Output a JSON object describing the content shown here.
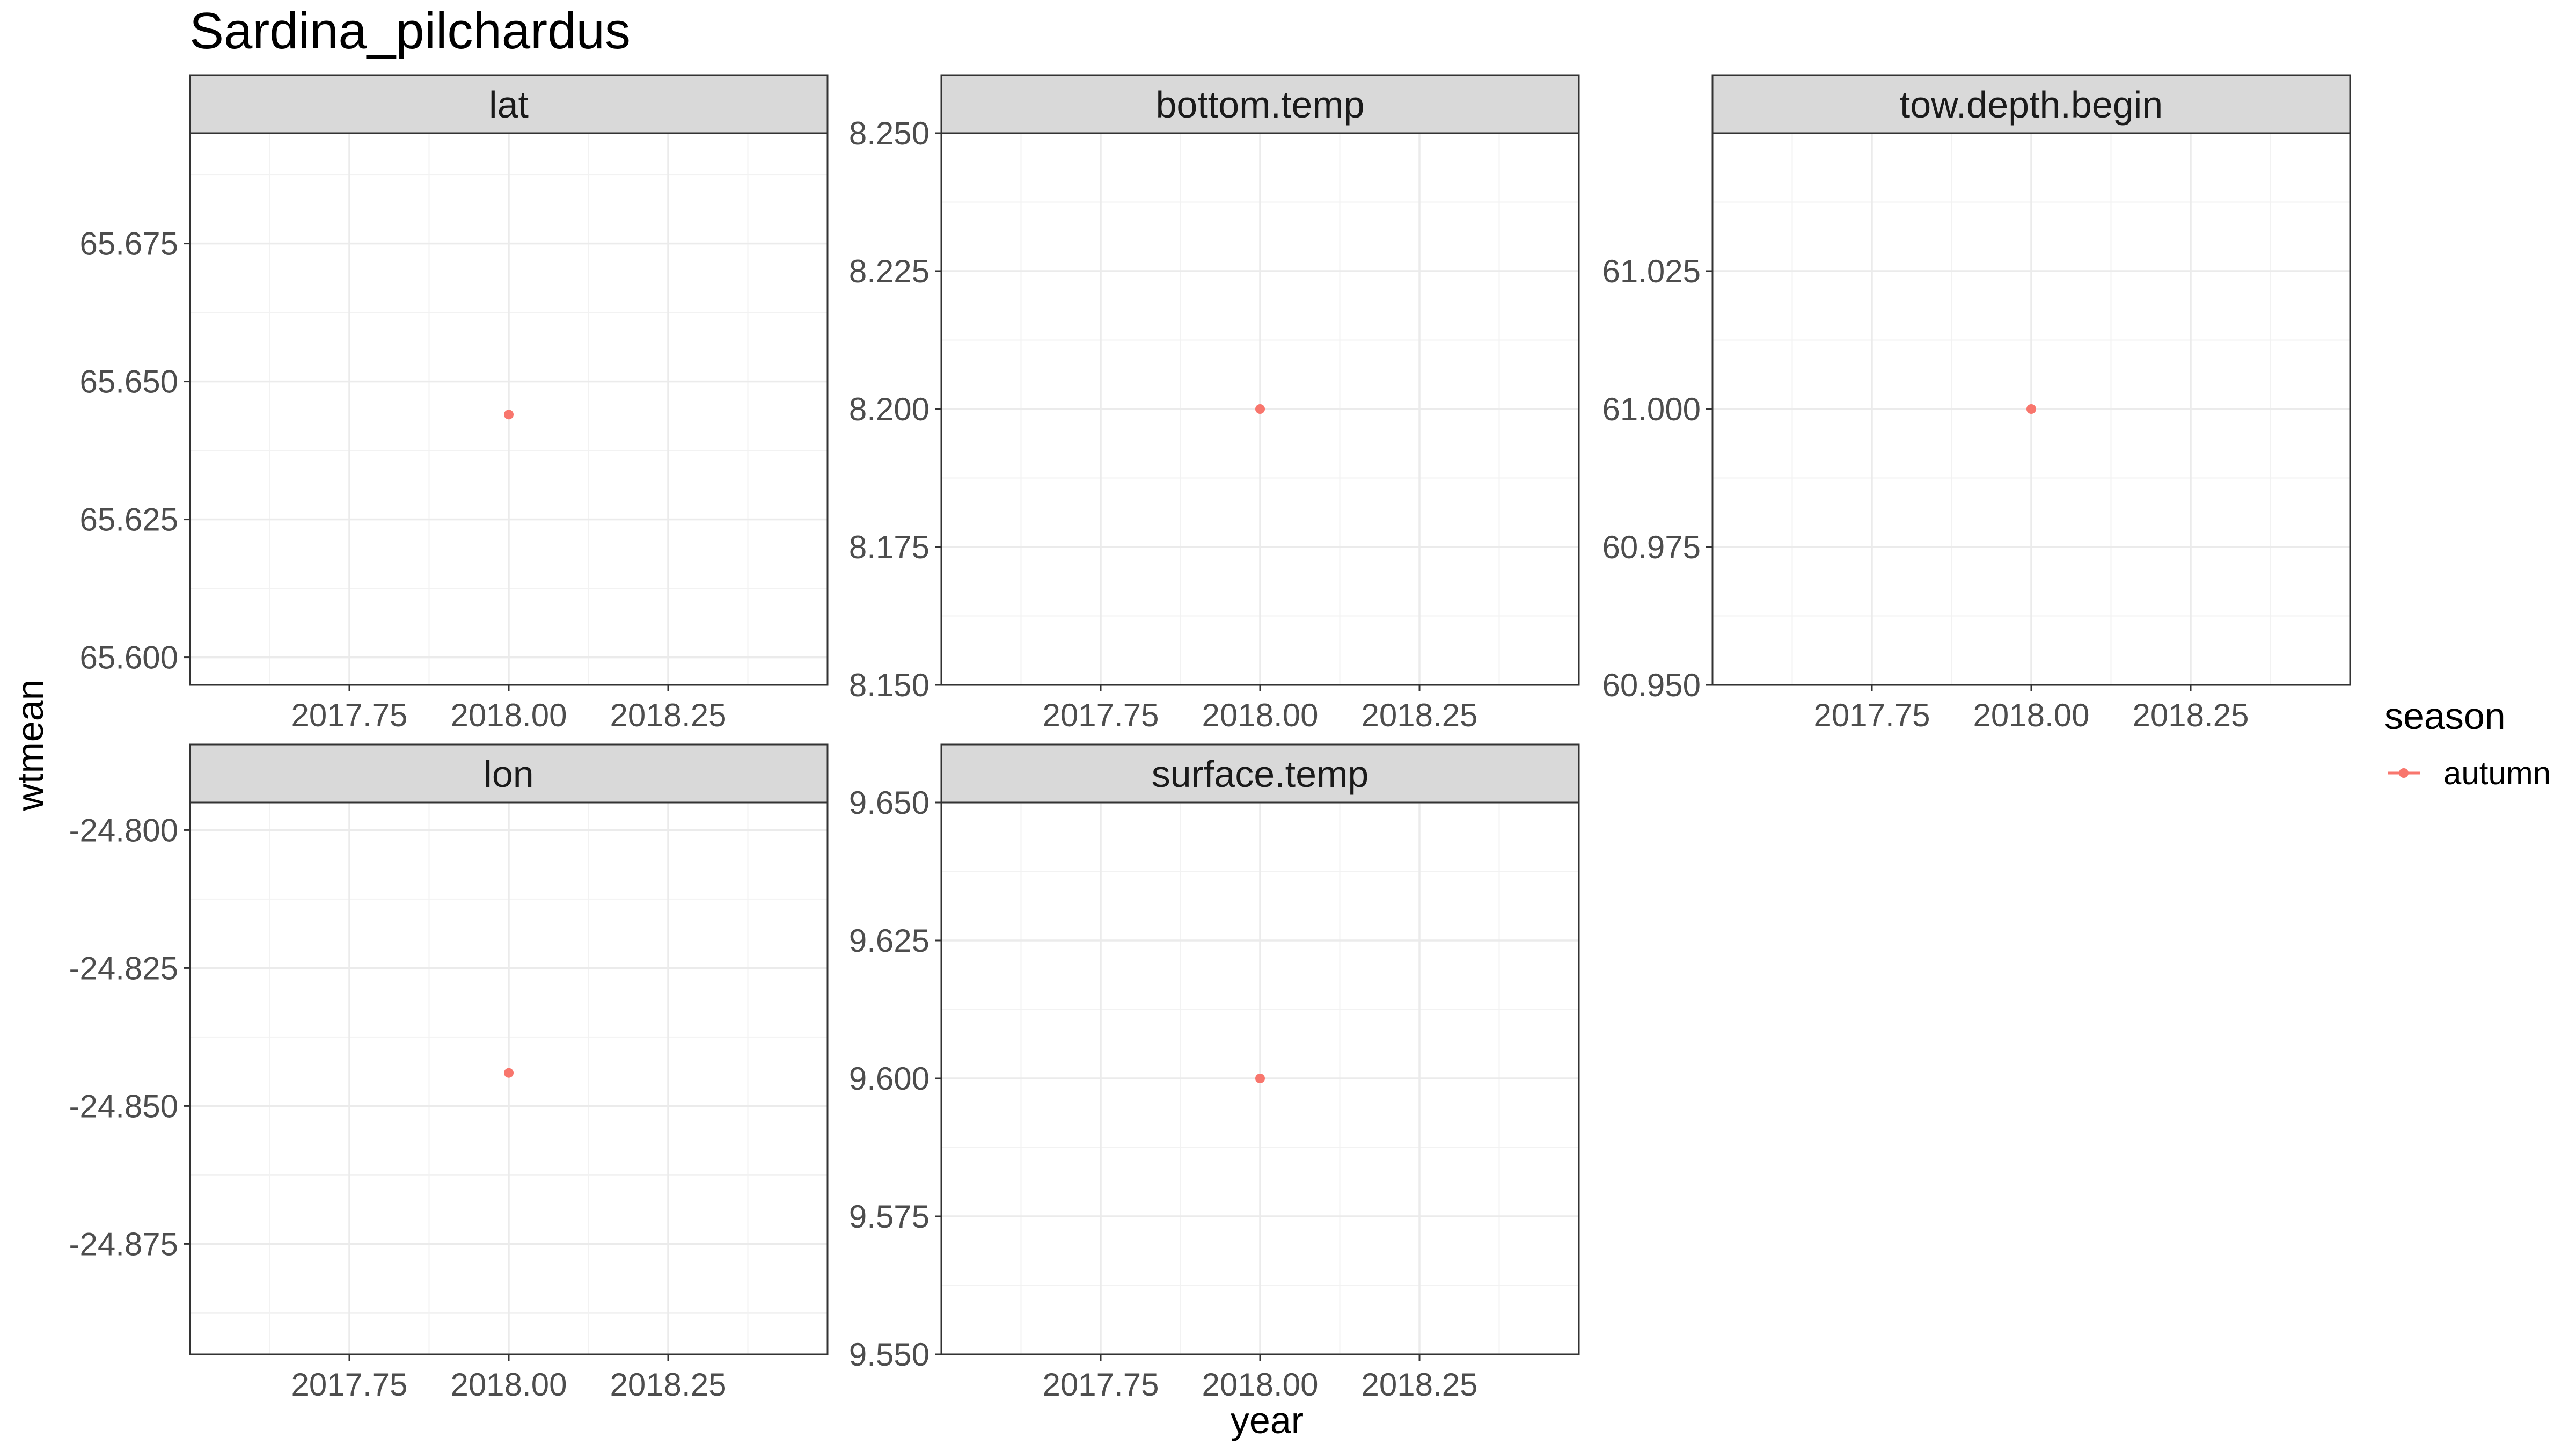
{
  "chart_data": {
    "type": "scatter",
    "title": "Sardina_pilchardus",
    "xlabel": "year",
    "ylabel": "wtmean",
    "grid": true,
    "legend": {
      "title": "season",
      "position": "right",
      "entries": [
        {
          "label": "autumn",
          "color": "#F8766D"
        }
      ]
    },
    "x_ticks": [
      "2017.75",
      "2018.00",
      "2018.25"
    ],
    "x_tick_values": [
      2017.75,
      2018.0,
      2018.25
    ],
    "xlim": [
      2017.5,
      2018.5
    ],
    "panels": [
      {
        "name": "lat",
        "ylim": [
          65.595,
          65.695
        ],
        "y_ticks": [
          "65.600",
          "65.625",
          "65.650",
          "65.675"
        ],
        "y_tick_values": [
          65.6,
          65.625,
          65.65,
          65.675
        ],
        "points": [
          {
            "x": 2018.0,
            "y": 65.644,
            "series": "autumn"
          }
        ]
      },
      {
        "name": "bottom.temp",
        "ylim": [
          8.15,
          8.25
        ],
        "y_ticks": [
          "8.150",
          "8.175",
          "8.200",
          "8.225",
          "8.250"
        ],
        "y_tick_values": [
          8.15,
          8.175,
          8.2,
          8.225,
          8.25
        ],
        "points": [
          {
            "x": 2018.0,
            "y": 8.2,
            "series": "autumn"
          }
        ]
      },
      {
        "name": "tow.depth.begin",
        "ylim": [
          60.95,
          61.05
        ],
        "y_ticks": [
          "60.950",
          "60.975",
          "61.000",
          "61.025"
        ],
        "y_tick_values": [
          60.95,
          60.975,
          61.0,
          61.025
        ],
        "points": [
          {
            "x": 2018.0,
            "y": 61.0,
            "series": "autumn"
          }
        ]
      },
      {
        "name": "lon",
        "ylim": [
          -24.895,
          -24.795
        ],
        "y_ticks": [
          "-24.875",
          "-24.850",
          "-24.825",
          "-24.800"
        ],
        "y_tick_values": [
          -24.875,
          -24.85,
          -24.825,
          -24.8
        ],
        "points": [
          {
            "x": 2018.0,
            "y": -24.844,
            "series": "autumn"
          }
        ]
      },
      {
        "name": "surface.temp",
        "ylim": [
          9.55,
          9.65
        ],
        "y_ticks": [
          "9.550",
          "9.575",
          "9.600",
          "9.625",
          "9.650"
        ],
        "y_tick_values": [
          9.55,
          9.575,
          9.6,
          9.625,
          9.65
        ],
        "points": [
          {
            "x": 2018.0,
            "y": 9.6,
            "series": "autumn"
          }
        ]
      }
    ]
  }
}
